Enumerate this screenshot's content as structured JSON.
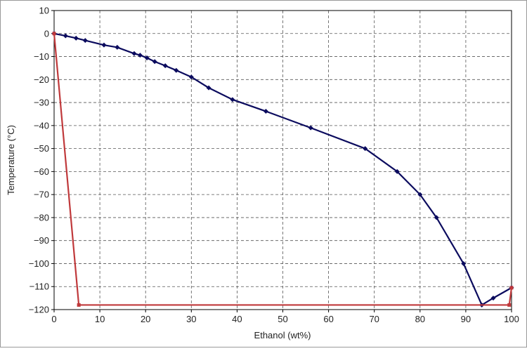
{
  "chart_data": {
    "type": "line",
    "x_label": "Ethanol (wt%)",
    "y_label": "Temperature (°C)",
    "xlim": [
      0,
      100
    ],
    "ylim": [
      -120,
      10
    ],
    "xticks": [
      0,
      10,
      20,
      30,
      40,
      50,
      60,
      70,
      80,
      90,
      100
    ],
    "yticks": [
      10,
      0,
      {
        "value": -10,
        "label": "−10"
      },
      {
        "value": -20,
        "label": "−20"
      },
      {
        "value": -30,
        "label": "−30"
      },
      {
        "value": -40,
        "label": "−40"
      },
      {
        "value": -50,
        "label": "−50"
      },
      {
        "value": -60,
        "label": "−60"
      },
      {
        "value": -70,
        "label": "−70"
      },
      {
        "value": -80,
        "label": "−80"
      },
      {
        "value": -90,
        "label": "−90"
      },
      {
        "value": -100,
        "label": "−100"
      },
      {
        "value": -110,
        "label": "−110"
      },
      {
        "value": -120,
        "label": "−120"
      }
    ],
    "grid": true,
    "series": [
      {
        "color": "#0b0b5e",
        "marker": "diamond",
        "x": [
          0,
          2.5,
          4.8,
          6.8,
          10.9,
          13.8,
          17.5,
          18.8,
          20.3,
          22,
          24.3,
          26.7,
          30,
          33.8,
          39,
          46.3,
          56.1,
          68,
          75,
          80,
          83.6,
          89.5,
          93.5,
          96,
          100
        ],
        "values": [
          0,
          -1,
          -2,
          -3,
          -5,
          -6,
          -8.7,
          -9.4,
          -10.6,
          -12.2,
          -14,
          -16,
          -18.9,
          -23.6,
          -28.7,
          -33.8,
          -41,
          -50,
          -60,
          -70,
          -80,
          -100,
          -118,
          -115,
          -110.5
        ]
      },
      {
        "color": "#c0393b",
        "marker": "square",
        "x": [
          0,
          5.4,
          99.5,
          100
        ],
        "values": [
          0,
          -118,
          -118,
          -110.5
        ]
      }
    ]
  }
}
